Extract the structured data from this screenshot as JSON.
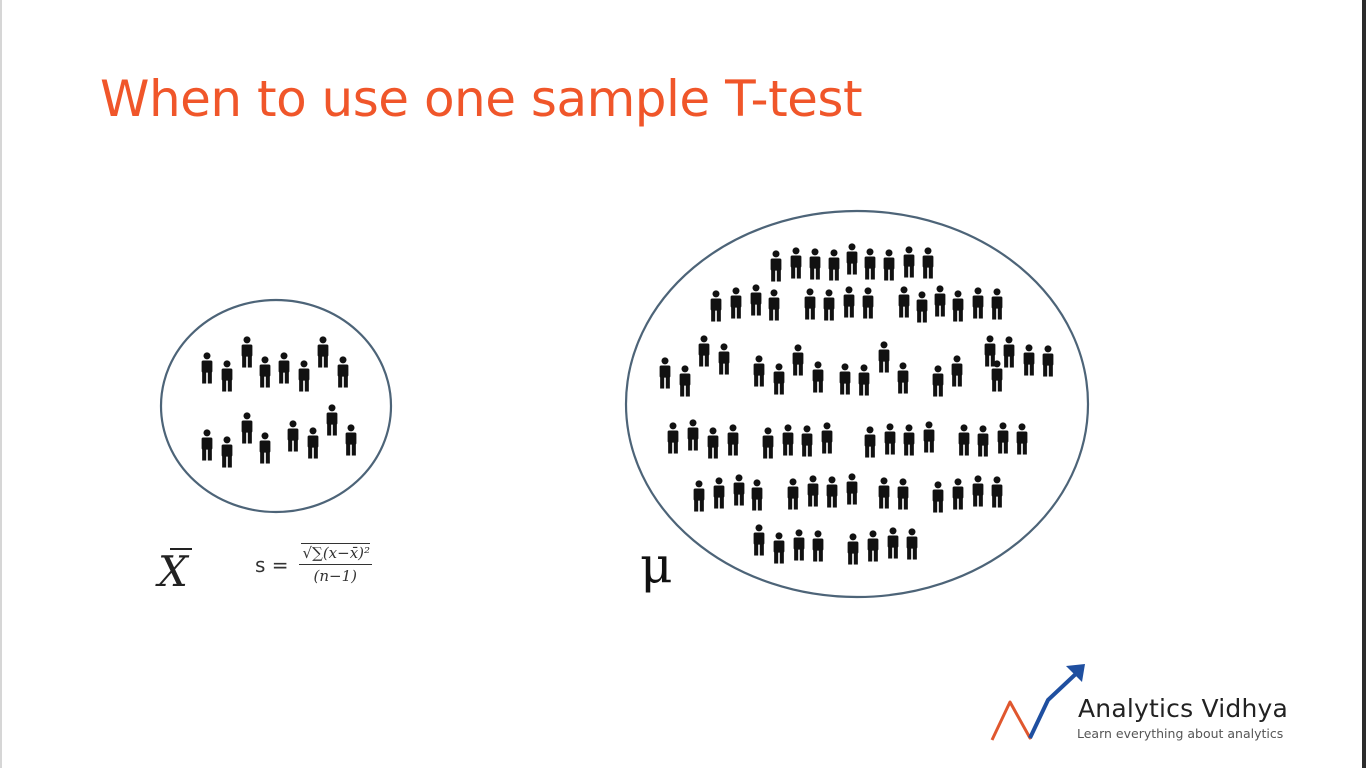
{
  "slide": {
    "title": "When to use one sample T-test",
    "accent_color": "#f0562a"
  },
  "sample_group": {
    "symbol_mean": "X",
    "std_formula": {
      "lhs": "s =",
      "numerator": "√∑(x−x̄)²",
      "denominator": "(n−1)"
    },
    "people_icon": "person-icon"
  },
  "population_group": {
    "symbol_mean": "μ",
    "people_icon": "person-icon"
  },
  "logo": {
    "name": "Analytics Vidhya",
    "tagline": "Learn everything about analytics",
    "icon": "trend-arrow-icon"
  }
}
